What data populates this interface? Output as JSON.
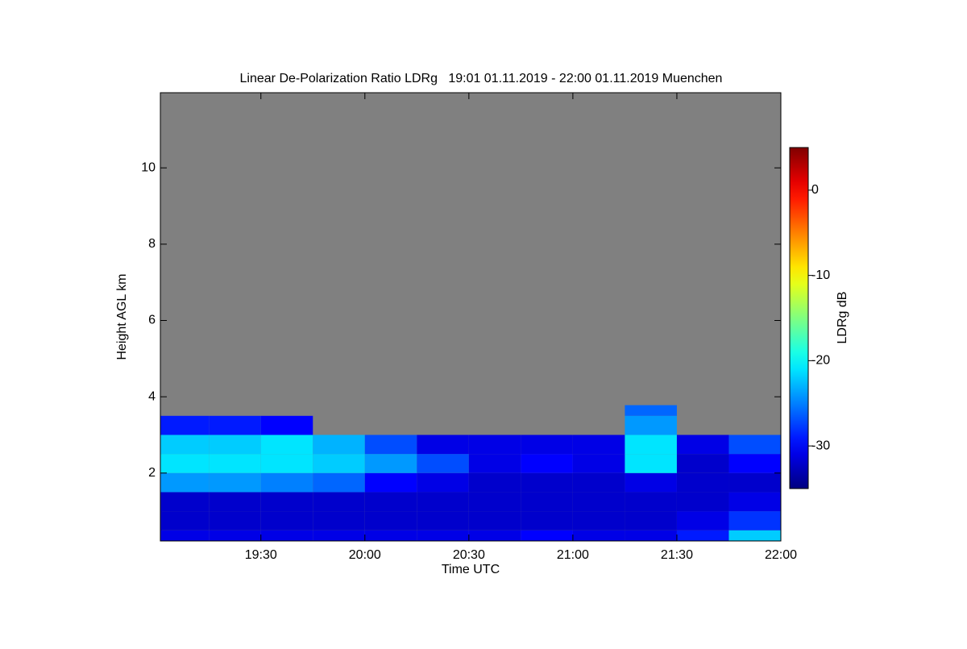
{
  "chart_data": {
    "type": "heatmap",
    "title": "Linear De-Polarization Ratio LDRg   19:01 01.11.2019 - 22:00 01.11.2019 Muenchen",
    "xlabel": "Time UTC",
    "ylabel": "Height AGL km",
    "x": [
      "19:01",
      "19:15",
      "19:30",
      "19:45",
      "20:00",
      "20:15",
      "20:30",
      "20:45",
      "21:00",
      "21:15",
      "21:30",
      "21:45"
    ],
    "y": [
      0.22,
      0.5,
      1,
      1.5,
      2,
      2.5,
      3,
      3.5
    ],
    "z": [
      [
        -31,
        -31,
        -31,
        -31,
        -31,
        -31,
        -31,
        -30,
        -31,
        -31,
        -29,
        -22
      ],
      [
        -32,
        -32,
        -32,
        -32,
        -32,
        -32,
        -32,
        -32,
        -32,
        -32,
        -31,
        -28
      ],
      [
        -32,
        -32,
        -32,
        -32,
        -32,
        -32,
        -32,
        -32,
        -32,
        -32,
        -32,
        -31
      ],
      [
        -24,
        -24,
        -25,
        -26,
        -30,
        -31,
        -32,
        -32,
        -32,
        -31,
        -32,
        -32
      ],
      [
        -21,
        -21,
        -21,
        -22,
        -24,
        -27,
        -31,
        -30,
        -31,
        -21,
        -32,
        -30
      ],
      [
        -22,
        -22,
        -21,
        -23,
        -27,
        -31,
        -31,
        -31,
        -31,
        -21,
        -31,
        -27
      ],
      [
        -29,
        -29,
        -30,
        null,
        null,
        null,
        null,
        null,
        null,
        -24,
        null,
        null
      ],
      [
        null,
        null,
        null,
        null,
        null,
        null,
        null,
        null,
        null,
        -26,
        null,
        null
      ]
    ],
    "xlim": [
      "19:01",
      "22:00"
    ],
    "xticks": [
      "19:30",
      "20:00",
      "20:30",
      "21:00",
      "21:30",
      "22:00"
    ],
    "ylim": [
      0.22,
      11.97
    ],
    "yticks": [
      2,
      4,
      6,
      8,
      10
    ],
    "colormap": "jet",
    "background": "#808080",
    "colorbar": {
      "label": "LDRg dB",
      "clim": [
        -35,
        5
      ],
      "ticks": [
        0,
        -10,
        -20,
        -30
      ]
    }
  }
}
